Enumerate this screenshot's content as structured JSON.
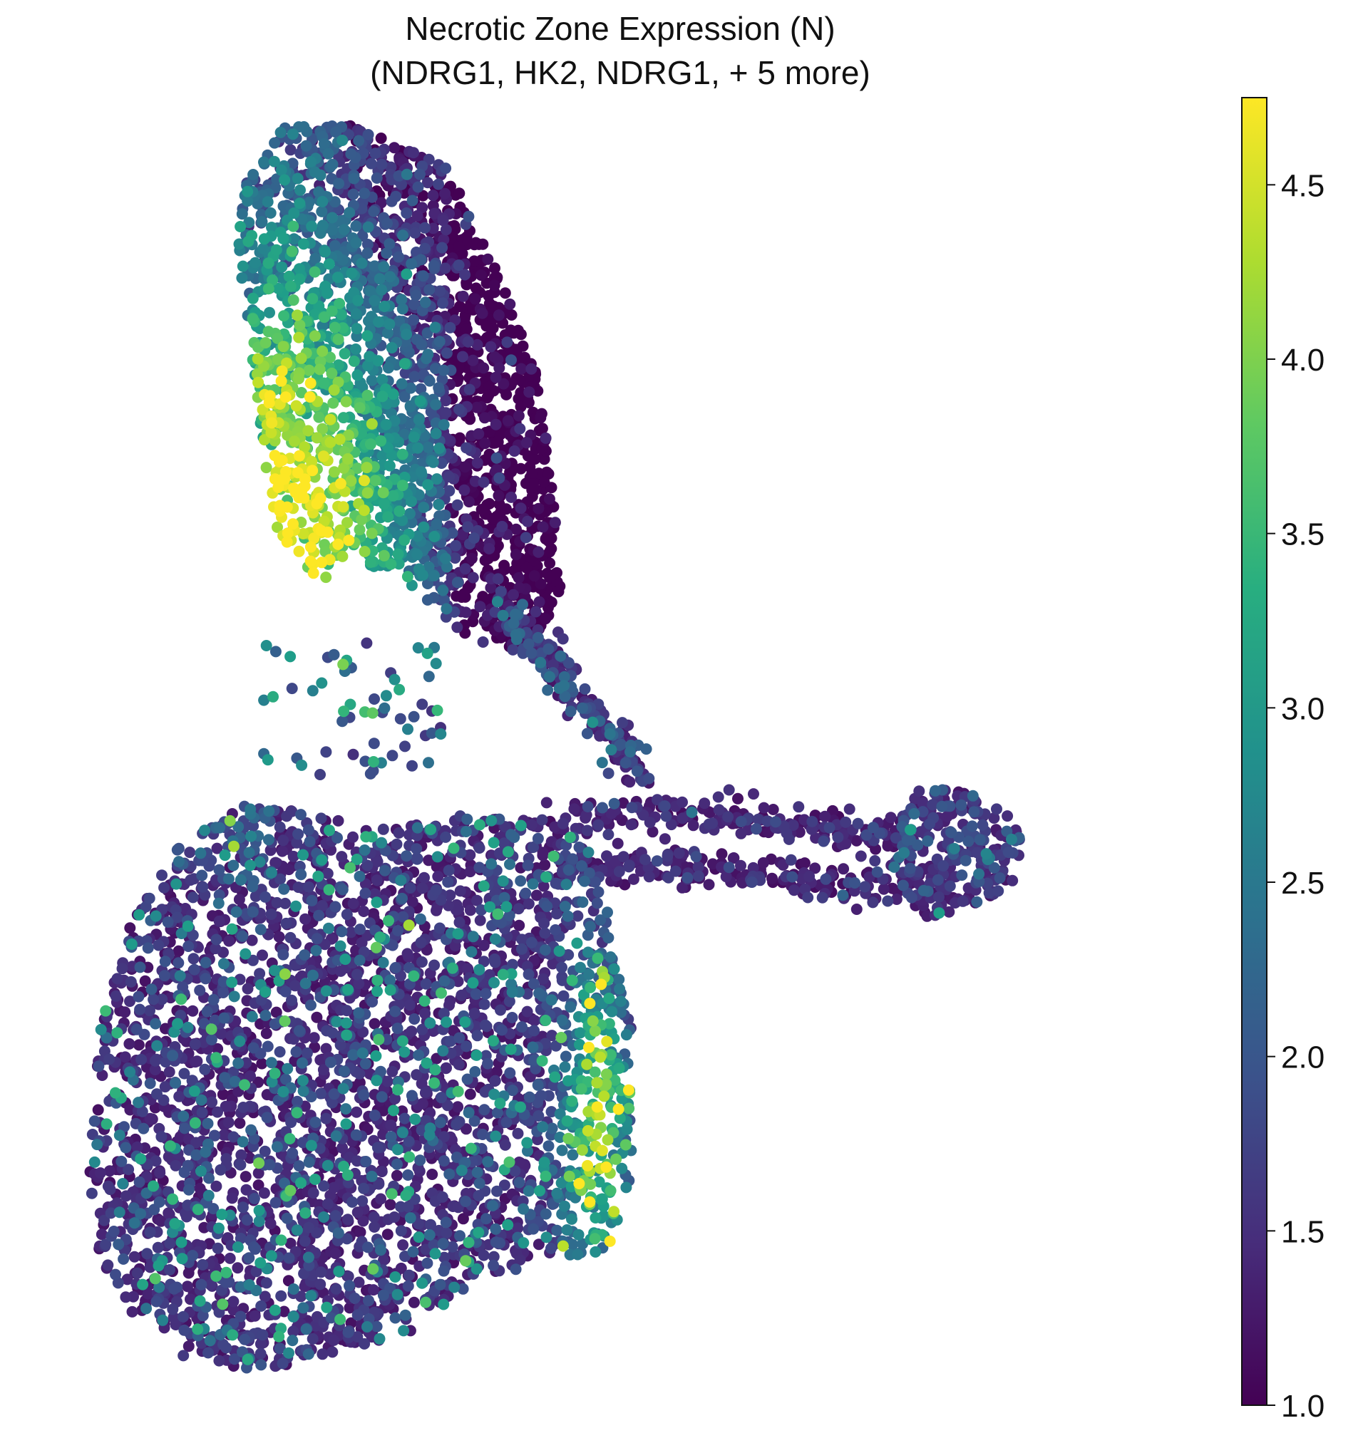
{
  "chart_data": {
    "type": "scatter",
    "title": "Necrotic Zone Expression (N)",
    "subtitle": "(NDRG1, HK2, NDRG1, + 5 more)",
    "xlabel": "",
    "ylabel": "",
    "axes_visible": false,
    "grid": false,
    "colormap": "viridis",
    "colorbar": {
      "range": [
        1.0,
        4.75
      ],
      "ticks": [
        1.0,
        1.5,
        2.0,
        2.5,
        3.0,
        3.5,
        4.0,
        4.5
      ],
      "tick_labels": [
        "1.0",
        "1.5",
        "2.0",
        "2.5",
        "3.0",
        "3.5",
        "4.0",
        "4.5"
      ],
      "placement": "right"
    },
    "regions": [
      {
        "name": "upper cluster",
        "x_range": [
          0.17,
          0.43
        ],
        "y_range": [
          0.53,
          0.96
        ],
        "mean_value": 2.4,
        "high_zone": "lower-left, values 3.5–4.75"
      },
      {
        "name": "lower cluster",
        "x_range": [
          0.04,
          0.52
        ],
        "y_range": [
          0.04,
          0.47
        ],
        "mean_value": 1.5,
        "high_zone": "right edge, values 3.0–4.6"
      },
      {
        "name": "bridge arm",
        "x_range": [
          0.48,
          0.83
        ],
        "y_range": [
          0.36,
          0.48
        ],
        "mean_value": 1.2
      },
      {
        "name": "right cluster",
        "x_range": [
          0.73,
          0.86
        ],
        "y_range": [
          0.37,
          0.47
        ],
        "mean_value": 1.5
      }
    ],
    "colors": {
      "viridis_low": "#440154",
      "viridis_mid": "#21918c",
      "viridis_high": "#fde725"
    }
  }
}
